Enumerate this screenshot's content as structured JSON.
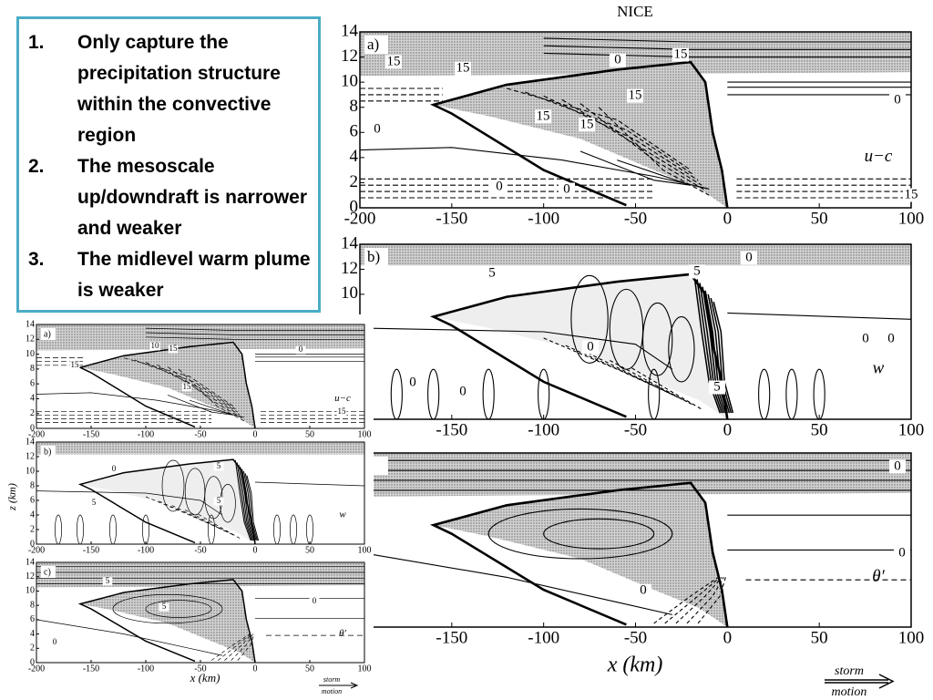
{
  "bullet_numbers": [
    "1.",
    "2.",
    "3."
  ],
  "bullets": [
    "Only capture the precipitation structure within the convective region",
    "The mesoscale up/downdraft is narrower and weaker",
    "The midlevel warm plume is weaker"
  ],
  "large_figure": {
    "title": "NICE",
    "x_label": "x (km)",
    "storm_motion": [
      "storm",
      "motion"
    ],
    "panels": [
      {
        "label": "a)",
        "field": "u−c",
        "yticks": [
          0,
          2,
          4,
          6,
          8,
          10,
          12,
          14
        ],
        "xticks": [
          -200,
          -150,
          -100,
          -50,
          0,
          50,
          100
        ],
        "contour_labels": [
          15,
          15,
          0,
          15,
          15,
          15,
          15,
          0,
          0,
          0,
          0,
          15
        ]
      },
      {
        "label": "b)",
        "field": "w",
        "yticks": [
          10,
          12,
          14
        ],
        "xticks": [
          -150,
          -100,
          -50,
          0,
          50,
          100
        ],
        "contour_labels": [
          5,
          0,
          5,
          0,
          0,
          0,
          0,
          0,
          5
        ]
      },
      {
        "label": ")",
        "field": "θ′",
        "yticks": [],
        "xticks": [
          -150,
          -100,
          -50,
          0,
          50,
          100
        ],
        "contour_labels": [
          0,
          0,
          0
        ]
      }
    ]
  },
  "small_figure": {
    "y_label": "z (km)",
    "x_label": "x (km)",
    "storm_motion": [
      "storm",
      "motion"
    ],
    "panels": [
      {
        "label": "a)",
        "field": "u−c",
        "yticks": [
          0,
          2,
          4,
          6,
          8,
          10,
          12,
          14
        ],
        "xticks": [
          -200,
          -150,
          -100,
          -50,
          0,
          50,
          100
        ],
        "contour_labels": [
          10,
          15,
          0,
          15,
          15,
          15
        ]
      },
      {
        "label": "b)",
        "field": "w",
        "yticks": [
          0,
          2,
          4,
          6,
          8,
          10,
          12,
          14
        ],
        "xticks": [
          -200,
          -150,
          -100,
          -50,
          0,
          50,
          100
        ],
        "contour_labels": [
          0,
          5,
          5,
          5
        ]
      },
      {
        "label": "c)",
        "field": "θ′",
        "yticks": [
          0,
          2,
          4,
          6,
          8,
          10,
          12,
          14
        ],
        "xticks": [
          -200,
          -150,
          -100,
          -50,
          0,
          50,
          100
        ],
        "contour_labels": [
          5,
          5,
          0,
          0
        ]
      }
    ]
  }
}
